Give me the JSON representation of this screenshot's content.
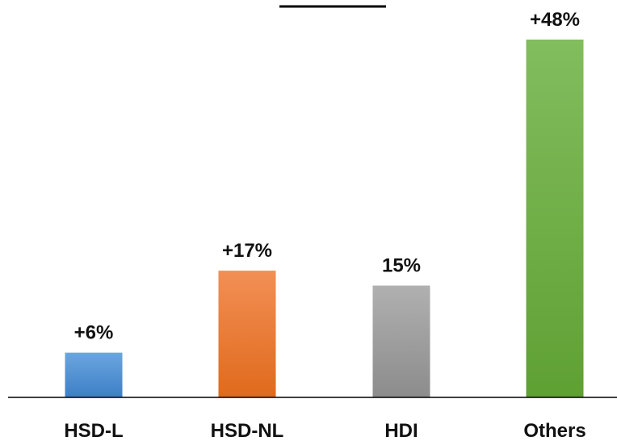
{
  "chart_data": {
    "type": "bar",
    "categories": [
      "HSD-L",
      "HSD-NL",
      "HDI",
      "Others"
    ],
    "values": [
      6,
      17,
      15,
      48
    ],
    "data_labels": [
      "+6%",
      "+17%",
      "15%",
      "+48%"
    ],
    "colors": [
      [
        "#6aa6e0",
        "#3d7fc6"
      ],
      [
        "#f28f55",
        "#e06a1c"
      ],
      [
        "#b0b0b0",
        "#8c8c8c"
      ],
      [
        "#82bd5e",
        "#5fa033"
      ]
    ],
    "ylim": [
      0,
      48
    ],
    "grid": false,
    "title": "",
    "xlabel": "",
    "ylabel": ""
  }
}
